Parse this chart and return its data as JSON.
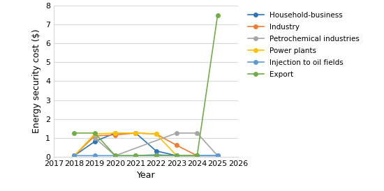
{
  "years": [
    2018,
    2019,
    2020,
    2021,
    2022,
    2023,
    2024,
    2025
  ],
  "series": [
    {
      "label": "Household-business",
      "color": "#2E75B6",
      "marker": "o",
      "values": [
        0.05,
        0.8,
        1.25,
        1.25,
        0.3,
        0.05,
        0.05,
        0.05
      ]
    },
    {
      "label": "Industry",
      "color": "#ED7D31",
      "marker": "o",
      "values": [
        0.05,
        1.1,
        1.15,
        1.25,
        1.2,
        0.6,
        0.05,
        null
      ]
    },
    {
      "label": "Petrochemical industries",
      "color": "#A5A5A5",
      "marker": "o",
      "values": [
        null,
        1.0,
        0.05,
        null,
        null,
        1.25,
        1.25,
        0.05
      ]
    },
    {
      "label": "Power plants",
      "color": "#FFC000",
      "marker": "o",
      "values": [
        0.05,
        1.2,
        1.25,
        1.25,
        1.2,
        0.05,
        0.05,
        null
      ]
    },
    {
      "label": "Injection to oil fields",
      "color": "#5B9BD5",
      "marker": "o",
      "values": [
        0.05,
        0.05,
        0.05,
        0.05,
        0.1,
        0.05,
        0.05,
        0.05
      ]
    },
    {
      "label": "Export",
      "color": "#70AD47",
      "marker": "o",
      "values": [
        1.25,
        1.25,
        0.05,
        0.05,
        0.05,
        0.05,
        0.05,
        7.5
      ]
    }
  ],
  "xlabel": "Year",
  "ylabel": "Energy security cost ($)",
  "xlim": [
    2017,
    2026
  ],
  "ylim": [
    0,
    8
  ],
  "yticks": [
    0,
    1,
    2,
    3,
    4,
    5,
    6,
    7,
    8
  ],
  "xticks": [
    2017,
    2018,
    2019,
    2020,
    2021,
    2022,
    2023,
    2024,
    2025,
    2026
  ],
  "background_color": "#ffffff",
  "grid_color": "#d9d9d9"
}
